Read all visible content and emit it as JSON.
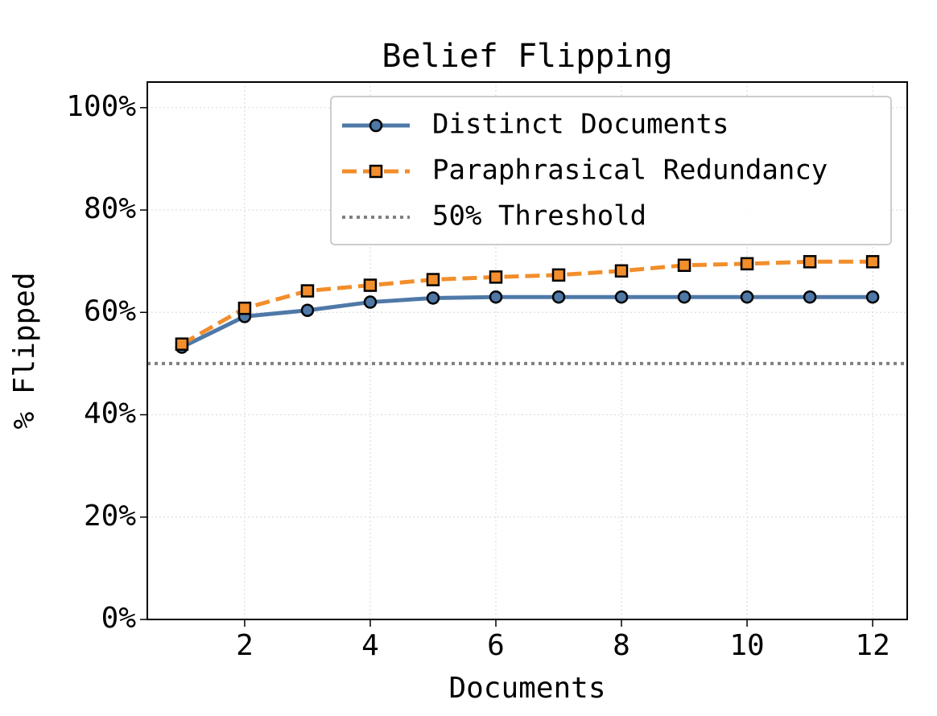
{
  "chart_data": {
    "type": "line",
    "title": "Belief Flipping",
    "xlabel": "Documents",
    "ylabel": "% Flipped",
    "x": [
      1,
      2,
      3,
      4,
      5,
      6,
      7,
      8,
      9,
      10,
      11,
      12
    ],
    "series": [
      {
        "name": "Distinct Documents",
        "color": "#4e79a7",
        "marker": "circle",
        "dash": "solid",
        "values": [
          53.2,
          59.2,
          60.4,
          62.0,
          62.8,
          63.0,
          63.0,
          63.0,
          63.0,
          63.0,
          63.0,
          63.0
        ]
      },
      {
        "name": "Paraphrasical Redundancy",
        "color": "#f28e2b",
        "marker": "square",
        "dash": "dashed",
        "values": [
          53.8,
          60.8,
          64.2,
          65.3,
          66.4,
          66.9,
          67.3,
          68.1,
          69.2,
          69.5,
          69.9,
          69.9
        ]
      }
    ],
    "threshold": {
      "name": "50% Threshold",
      "value": 50,
      "color": "#808080"
    },
    "xlim": [
      0.45,
      12.55
    ],
    "xticks": [
      2,
      4,
      6,
      8,
      10,
      12
    ],
    "ylim": [
      0,
      105
    ],
    "yticks": [
      {
        "value": 0,
        "label": "0%"
      },
      {
        "value": 20,
        "label": "20%"
      },
      {
        "value": 40,
        "label": "40%"
      },
      {
        "value": 60,
        "label": "60%"
      },
      {
        "value": 80,
        "label": "80%"
      },
      {
        "value": 100,
        "label": "100%"
      }
    ],
    "grid": true,
    "legend": "upper right"
  }
}
